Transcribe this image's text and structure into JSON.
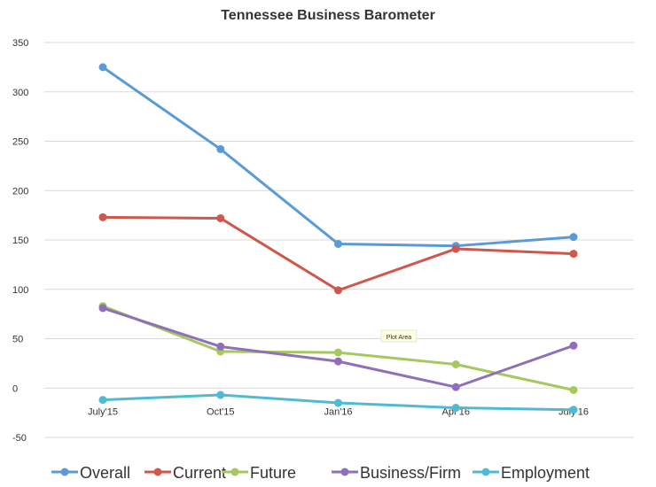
{
  "chart_data": {
    "type": "line",
    "title": "Tennessee Business Barometer",
    "xlabel": "",
    "ylabel": "",
    "categories": [
      "July'15",
      "Oct'15",
      "Jan'16",
      "Apr'16",
      "July'16"
    ],
    "ylim": [
      -50,
      350
    ],
    "yticks": [
      -50,
      0,
      50,
      100,
      150,
      200,
      250,
      300,
      350
    ],
    "grid": true,
    "legend_position": "bottom",
    "series": [
      {
        "name": "Overall",
        "color": "#5b9bd5",
        "values": [
          325,
          242,
          146,
          144,
          153
        ]
      },
      {
        "name": "Current",
        "color": "#d0574b",
        "values": [
          173,
          172,
          99,
          141,
          136
        ]
      },
      {
        "name": "Future",
        "color": "#a5c85f",
        "values": [
          83,
          37,
          36,
          24,
          -2
        ]
      },
      {
        "name": "Business/Firm",
        "color": "#8f6fb8",
        "values": [
          81,
          42,
          27,
          1,
          43
        ]
      },
      {
        "name": "Employment",
        "color": "#4fbad3",
        "values": [
          -12,
          -7,
          -15,
          -20,
          -22
        ]
      }
    ],
    "tooltip": "Plot Area"
  }
}
